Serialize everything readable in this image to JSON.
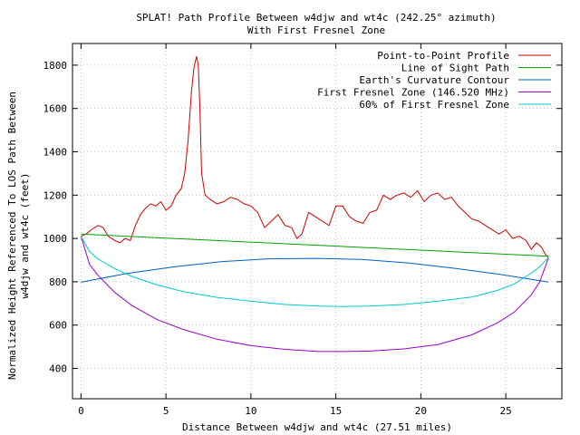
{
  "chart_data": {
    "type": "line",
    "title": "SPLAT! Path Profile Between w4djw and wt4c (242.25° azimuth)",
    "subtitle": "With First Fresnel Zone",
    "xlabel": "Distance Between w4djw and wt4c (27.51 miles)",
    "ylabel_line1": "Normalized Height Referenced To LOS Path Between",
    "ylabel_line2": "w4djw and wt4c (feet)",
    "xlim": [
      -0.5,
      28.3
    ],
    "ylim": [
      260,
      1900
    ],
    "xticks": [
      0,
      5,
      10,
      15,
      20,
      25
    ],
    "xtick_labels": [
      "0",
      "5",
      "10",
      "15",
      "20",
      "25"
    ],
    "yticks": [
      400,
      600,
      800,
      1000,
      1200,
      1400,
      1600,
      1800
    ],
    "ytick_labels": [
      "400",
      "600",
      "800",
      "1000",
      "1200",
      "1400",
      "1600",
      "1800"
    ],
    "grid": true,
    "legend_position": "top-right",
    "series": [
      {
        "name": "Point-to-Point Profile",
        "color": "#cc0000",
        "x": [
          0,
          0.3,
          0.6,
          1.0,
          1.3,
          1.6,
          2.0,
          2.3,
          2.6,
          2.9,
          3.2,
          3.5,
          3.8,
          4.1,
          4.4,
          4.7,
          5.0,
          5.3,
          5.6,
          5.9,
          6.1,
          6.3,
          6.5,
          6.65,
          6.8,
          6.9,
          7.0,
          7.1,
          7.3,
          7.6,
          8.0,
          8.4,
          8.8,
          9.2,
          9.6,
          10.0,
          10.4,
          10.8,
          11.2,
          11.6,
          12.0,
          12.4,
          12.7,
          13.0,
          13.4,
          13.8,
          14.2,
          14.6,
          15.0,
          15.4,
          15.8,
          16.2,
          16.6,
          17.0,
          17.4,
          17.8,
          18.2,
          18.6,
          19.0,
          19.4,
          19.8,
          20.2,
          20.6,
          21.0,
          21.4,
          21.8,
          22.2,
          22.6,
          23.0,
          23.4,
          23.8,
          24.2,
          24.6,
          25.0,
          25.4,
          25.8,
          26.2,
          26.5,
          26.8,
          27.1,
          27.3,
          27.51
        ],
        "values": [
          1010,
          1020,
          1040,
          1060,
          1050,
          1010,
          990,
          980,
          1000,
          990,
          1060,
          1110,
          1140,
          1160,
          1150,
          1170,
          1130,
          1150,
          1200,
          1230,
          1300,
          1450,
          1680,
          1790,
          1840,
          1800,
          1600,
          1300,
          1200,
          1180,
          1160,
          1170,
          1190,
          1180,
          1160,
          1150,
          1120,
          1050,
          1080,
          1110,
          1060,
          1050,
          1000,
          1020,
          1120,
          1100,
          1080,
          1060,
          1150,
          1150,
          1100,
          1080,
          1070,
          1120,
          1130,
          1200,
          1180,
          1200,
          1210,
          1190,
          1220,
          1170,
          1200,
          1210,
          1180,
          1190,
          1150,
          1120,
          1090,
          1080,
          1060,
          1040,
          1020,
          1040,
          1000,
          1010,
          990,
          950,
          980,
          960,
          930,
          910
        ]
      },
      {
        "name": "Line of Sight Path",
        "color": "#00a000",
        "x": [
          0,
          27.51
        ],
        "values": [
          1020,
          918
        ]
      },
      {
        "name": "Earth's Curvature Contour",
        "color": "#0060c0",
        "x": [
          0,
          2.75,
          5.5,
          8.25,
          11.0,
          13.75,
          16.5,
          19.25,
          22.0,
          24.75,
          27.51
        ],
        "values": [
          798,
          839,
          869,
          893,
          906,
          908,
          903,
          887,
          862,
          833,
          799
        ]
      },
      {
        "name": "First Fresnel Zone (146.520 MHz)",
        "color": "#9900cc",
        "x": [
          0,
          0.5,
          1.0,
          2.0,
          3.0,
          4.5,
          6.0,
          8.0,
          10.0,
          12.0,
          14.0,
          15.5,
          17.0,
          19.0,
          21.0,
          23.0,
          24.5,
          25.5,
          26.5,
          27.0,
          27.51
        ],
        "values": [
          1010,
          880,
          830,
          750,
          690,
          625,
          580,
          535,
          505,
          488,
          478,
          478,
          480,
          490,
          510,
          555,
          610,
          660,
          740,
          800,
          910
        ]
      },
      {
        "name": "60% of First Fresnel Zone",
        "color": "#00cccc",
        "x": [
          0,
          0.5,
          1.0,
          2.0,
          3.0,
          4.5,
          6.0,
          8.0,
          10.0,
          12.0,
          14.0,
          15.5,
          17.0,
          19.0,
          21.0,
          23.0,
          24.5,
          25.5,
          26.5,
          27.0,
          27.51
        ],
        "values": [
          1010,
          940,
          905,
          860,
          825,
          785,
          755,
          728,
          710,
          695,
          688,
          686,
          688,
          695,
          710,
          730,
          760,
          790,
          840,
          870,
          912
        ]
      }
    ]
  }
}
